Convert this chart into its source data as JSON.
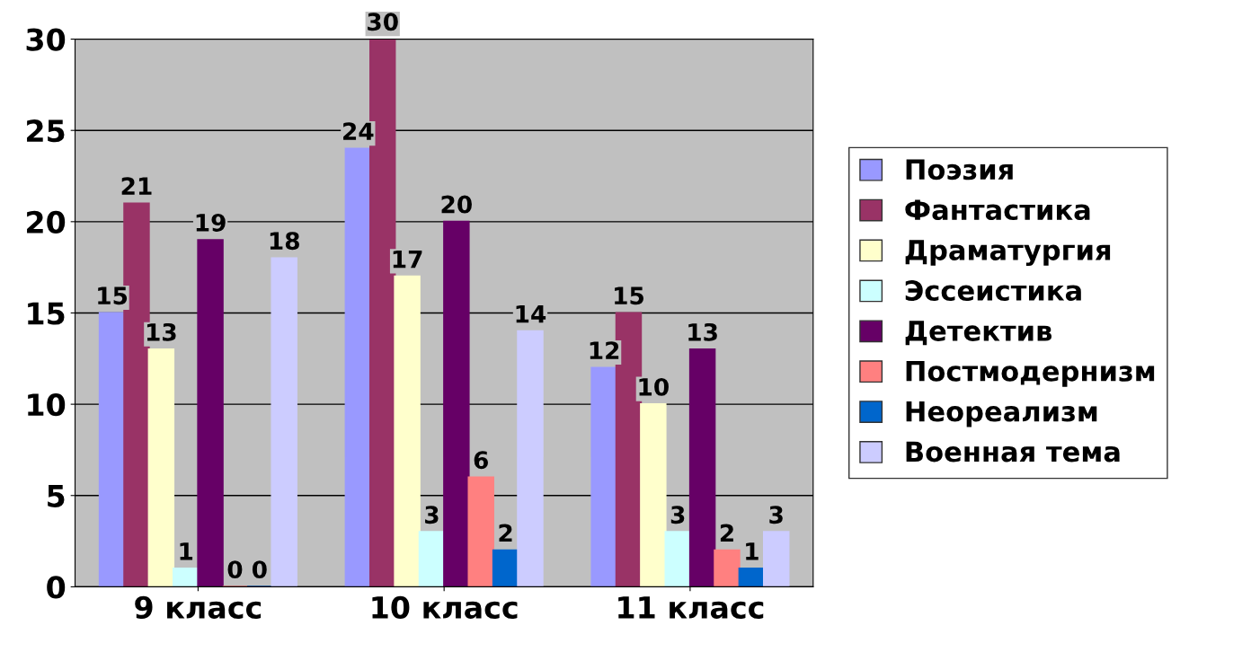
{
  "chart_data": {
    "type": "bar",
    "categories": [
      "9 класс",
      "10 класс",
      "11 класс"
    ],
    "series": [
      {
        "name": "Поэзия",
        "color": "#9999ff",
        "values": [
          15,
          24,
          12
        ]
      },
      {
        "name": "Фантастика",
        "color": "#993366",
        "values": [
          21,
          30,
          15
        ]
      },
      {
        "name": "Драматургия",
        "color": "#ffffcc",
        "values": [
          13,
          17,
          10
        ]
      },
      {
        "name": "Эссеистика",
        "color": "#ccffff",
        "values": [
          1,
          3,
          3
        ]
      },
      {
        "name": "Детектив",
        "color": "#660066",
        "values": [
          19,
          20,
          13
        ]
      },
      {
        "name": "Постмодернизм",
        "color": "#ff8080",
        "values": [
          0,
          6,
          2
        ]
      },
      {
        "name": "Неореализм",
        "color": "#0066cc",
        "values": [
          0,
          2,
          1
        ]
      },
      {
        "name": "Военная тема",
        "color": "#ccccff",
        "values": [
          18,
          14,
          3
        ]
      }
    ],
    "ylim": [
      0,
      30
    ],
    "yticks": [
      0,
      5,
      10,
      15,
      20,
      25,
      30
    ],
    "grid": "y",
    "legend": "right",
    "data_labels": true
  }
}
